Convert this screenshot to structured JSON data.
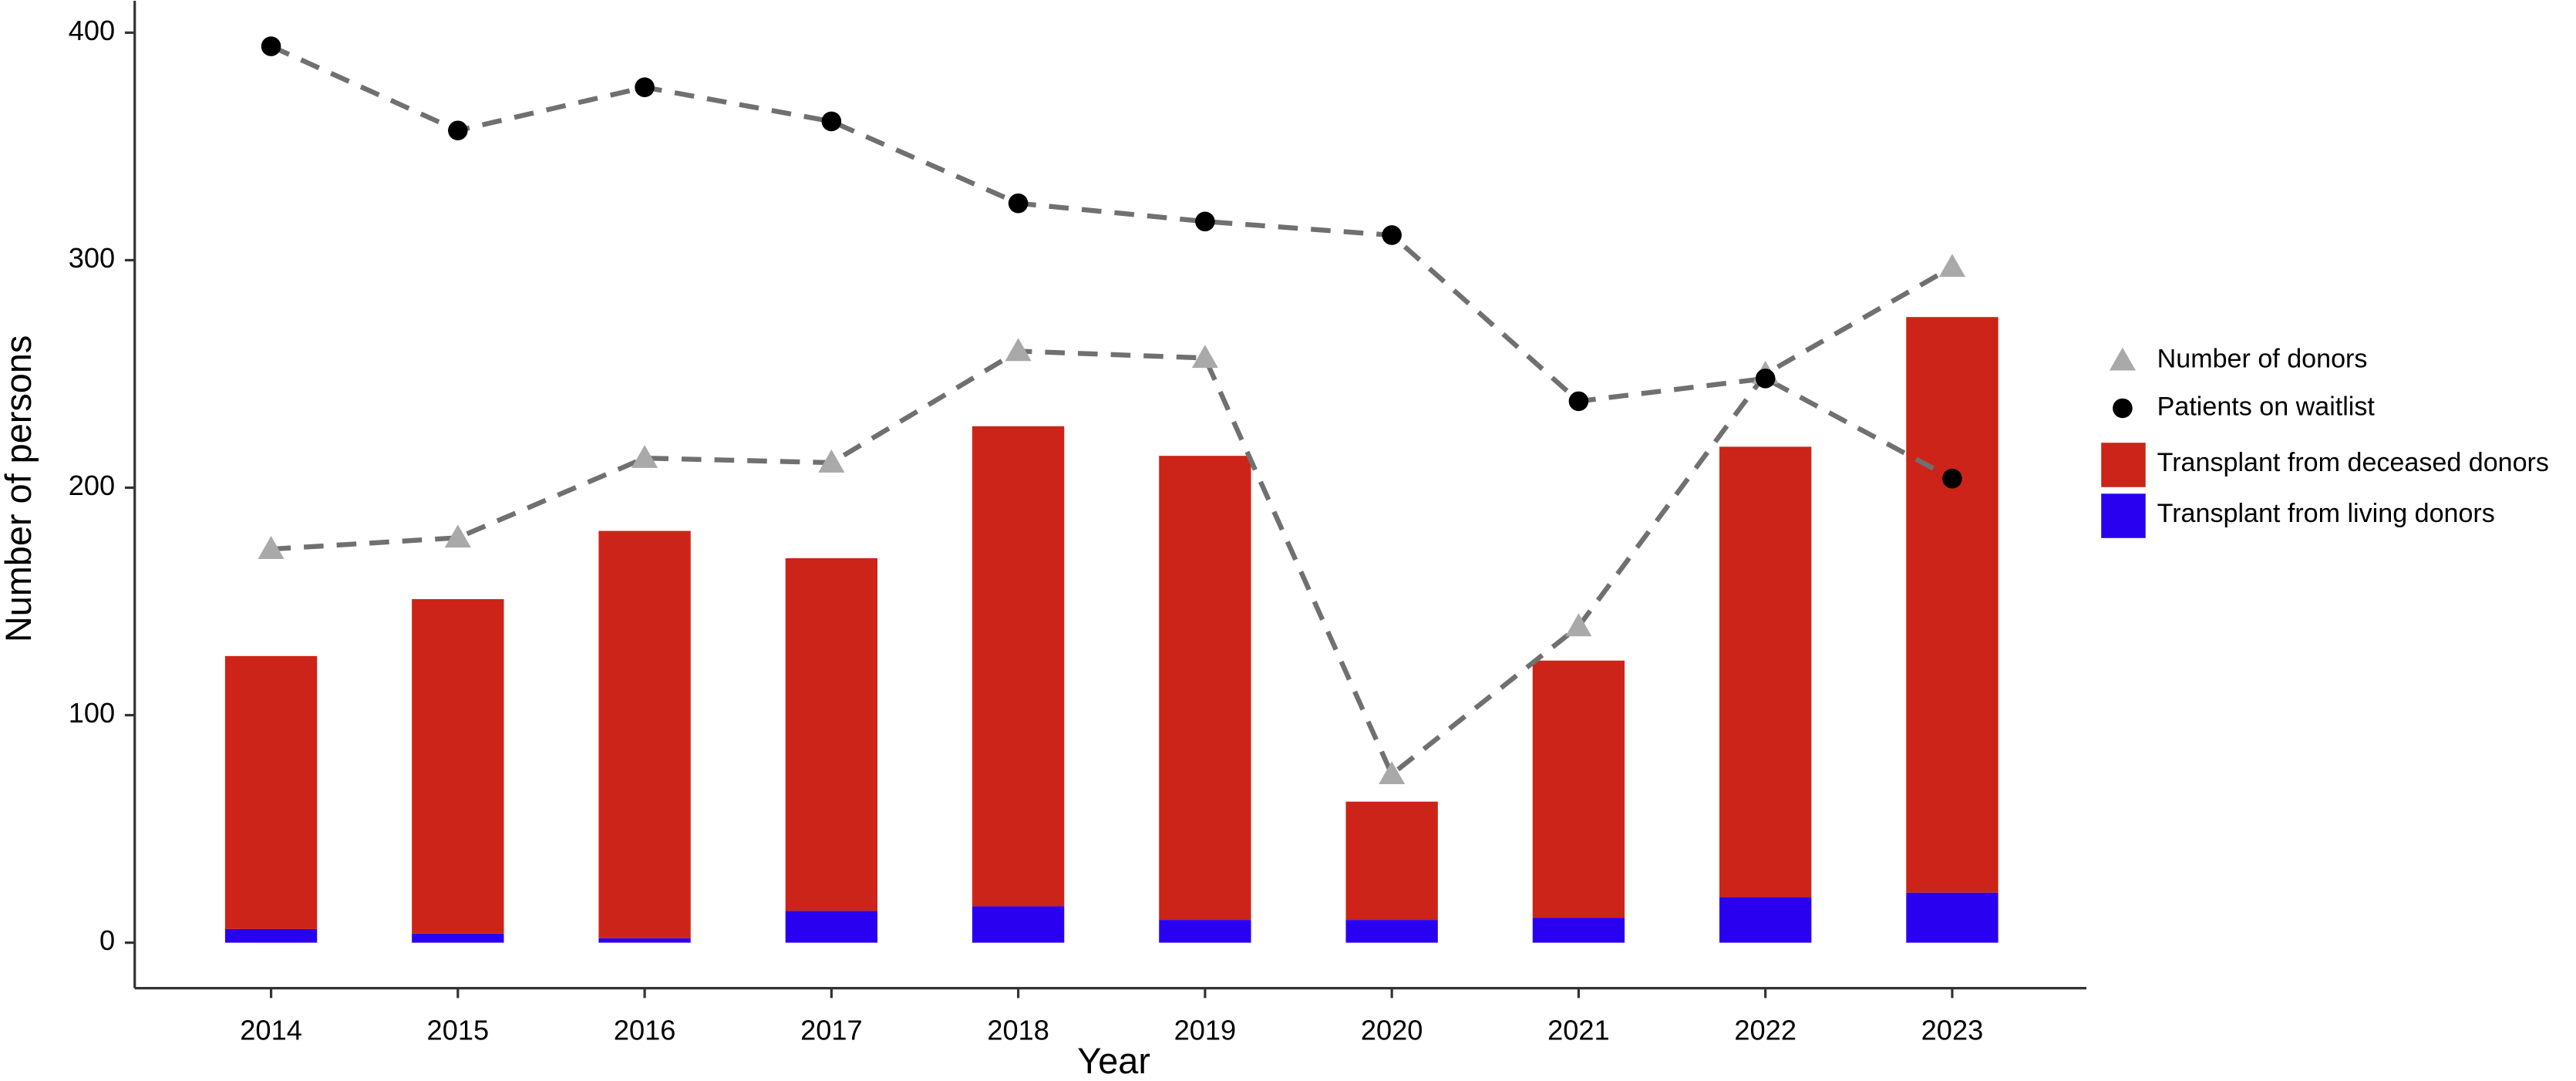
{
  "chart_data": {
    "type": "bar",
    "x_label": "Year",
    "y_label": "Number of persons",
    "categories": [
      "2014",
      "2015",
      "2016",
      "2017",
      "2018",
      "2019",
      "2020",
      "2021",
      "2022",
      "2023"
    ],
    "ylim": [
      -20,
      414
    ],
    "yticks": [
      0,
      100,
      200,
      300,
      400
    ],
    "series": [
      {
        "name": "Number of donors",
        "type": "line",
        "marker": "triangle",
        "color": "#a9a9a9",
        "line_color": "#707070",
        "values": [
          173,
          178,
          213,
          211,
          260,
          257,
          74,
          139,
          250,
          297
        ]
      },
      {
        "name": "Patients on waitlist",
        "type": "line",
        "marker": "circle",
        "color": "#000000",
        "line_color": "#707070",
        "values": [
          394,
          357,
          376,
          361,
          325,
          317,
          311,
          238,
          248,
          204
        ]
      },
      {
        "name": "Transplant from deceased donors",
        "type": "bar",
        "color": "#cc2418",
        "values": [
          120,
          147,
          179,
          155,
          211,
          204,
          52,
          113,
          198,
          253
        ]
      },
      {
        "name": "Transplant from living donors",
        "type": "bar",
        "color": "#2a00f0",
        "values": [
          6,
          4,
          2,
          14,
          16,
          10,
          10,
          11,
          20,
          22
        ]
      }
    ]
  }
}
